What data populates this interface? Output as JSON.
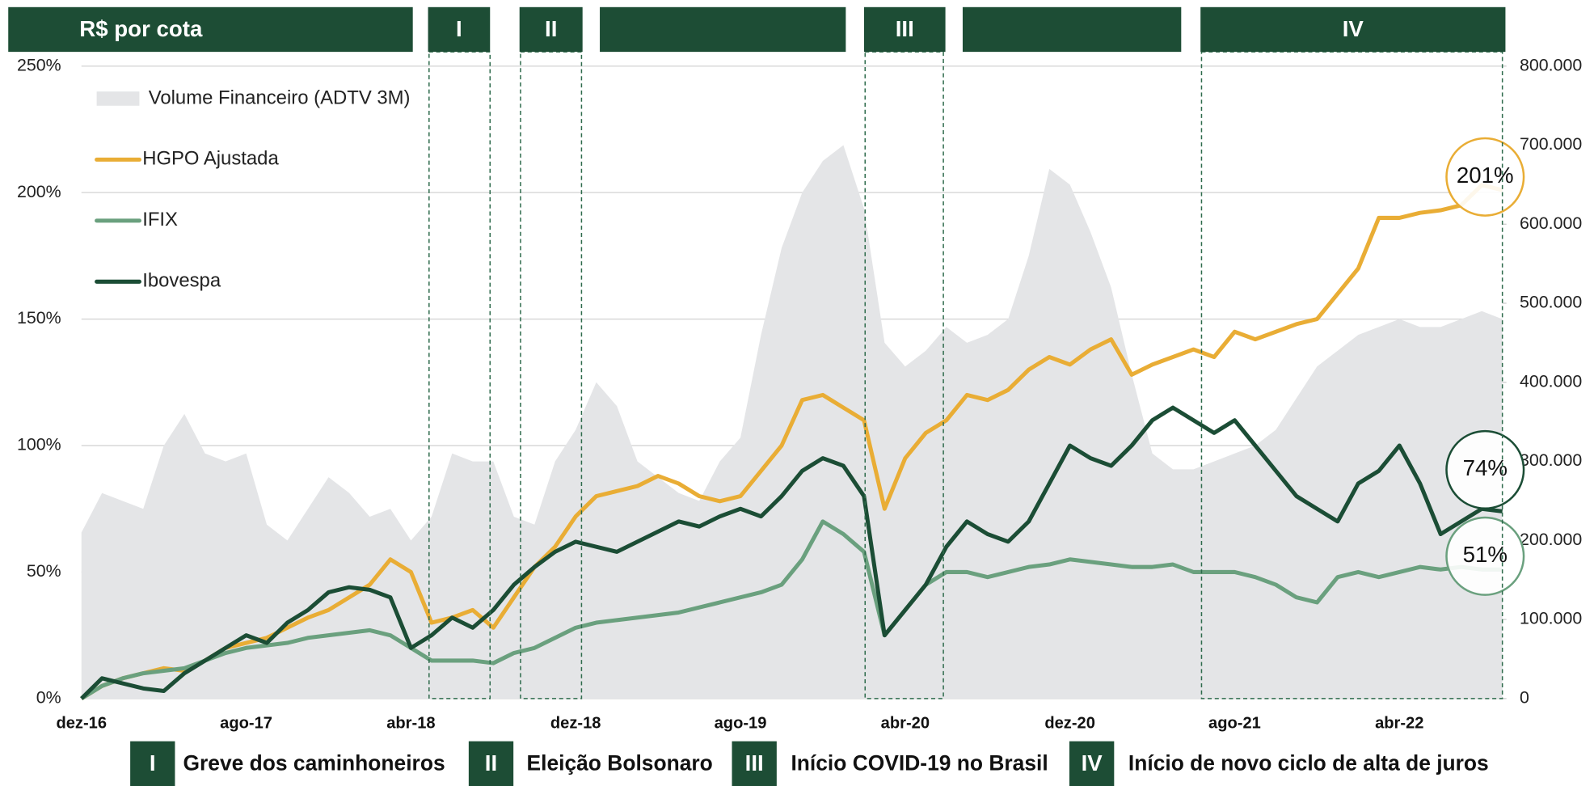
{
  "chart_data": {
    "type": "line",
    "y_axis_label": "R$ por cota",
    "categories": [
      "dez-16",
      null,
      null,
      null,
      null,
      null,
      null,
      null,
      "ago-17",
      null,
      null,
      null,
      null,
      null,
      null,
      null,
      "abr-18",
      null,
      null,
      null,
      null,
      null,
      null,
      null,
      "dez-18",
      null,
      null,
      null,
      null,
      null,
      null,
      null,
      "ago-19",
      null,
      null,
      null,
      null,
      null,
      null,
      null,
      "abr-20",
      null,
      null,
      null,
      null,
      null,
      null,
      null,
      "dez-20",
      null,
      null,
      null,
      null,
      null,
      null,
      null,
      "ago-21",
      null,
      null,
      null,
      null,
      null,
      null,
      null,
      "abr-22",
      null,
      null,
      null,
      null,
      null
    ],
    "series": [
      {
        "name": "Volume Financeiro (ADTV 3M)",
        "kind": "area",
        "axis": "y2",
        "color": "#e4e5e7",
        "values": [
          210000,
          260000,
          250000,
          240000,
          320000,
          360000,
          310000,
          300000,
          310000,
          220000,
          200000,
          240000,
          280000,
          260000,
          230000,
          240000,
          200000,
          230000,
          310000,
          300000,
          300000,
          230000,
          220000,
          300000,
          340000,
          400000,
          370000,
          300000,
          280000,
          260000,
          250000,
          300000,
          330000,
          460000,
          570000,
          640000,
          680000,
          700000,
          620000,
          450000,
          420000,
          440000,
          470000,
          450000,
          460000,
          480000,
          560000,
          670000,
          650000,
          590000,
          520000,
          410000,
          310000,
          290000,
          290000,
          300000,
          310000,
          320000,
          340000,
          380000,
          420000,
          440000,
          460000,
          470000,
          480000,
          470000,
          470000,
          480000,
          490000,
          480000
        ]
      },
      {
        "name": "HGPO Ajustada",
        "color": "#e9ad35",
        "end_label": "201%",
        "values": [
          0,
          5,
          8,
          10,
          12,
          11,
          15,
          20,
          22,
          24,
          28,
          32,
          35,
          40,
          45,
          55,
          50,
          30,
          32,
          35,
          28,
          40,
          52,
          60,
          72,
          80,
          82,
          84,
          88,
          85,
          80,
          78,
          80,
          90,
          100,
          118,
          120,
          115,
          110,
          75,
          95,
          105,
          110,
          120,
          118,
          122,
          130,
          135,
          132,
          138,
          142,
          128,
          132,
          135,
          138,
          135,
          145,
          142,
          145,
          148,
          150,
          160,
          170,
          190,
          190,
          192,
          193,
          195,
          203,
          201
        ]
      },
      {
        "name": "IFIX",
        "color": "#6aa07e",
        "end_label": "51%",
        "values": [
          0,
          5,
          8,
          10,
          11,
          12,
          15,
          18,
          20,
          21,
          22,
          24,
          25,
          26,
          27,
          25,
          20,
          15,
          15,
          15,
          14,
          18,
          20,
          24,
          28,
          30,
          31,
          32,
          33,
          34,
          36,
          38,
          40,
          42,
          45,
          55,
          70,
          65,
          58,
          25,
          35,
          45,
          50,
          50,
          48,
          50,
          52,
          53,
          55,
          54,
          53,
          52,
          52,
          53,
          50,
          50,
          50,
          48,
          45,
          40,
          38,
          48,
          50,
          48,
          50,
          52,
          51,
          52,
          51,
          51
        ]
      },
      {
        "name": "Ibovespa",
        "color": "#1b4d35",
        "end_label": "74%",
        "values": [
          0,
          8,
          6,
          4,
          3,
          10,
          15,
          20,
          25,
          22,
          30,
          35,
          42,
          44,
          43,
          40,
          20,
          25,
          32,
          28,
          35,
          45,
          52,
          58,
          62,
          60,
          58,
          62,
          66,
          70,
          68,
          72,
          75,
          72,
          80,
          90,
          95,
          92,
          80,
          25,
          35,
          45,
          60,
          70,
          65,
          62,
          70,
          85,
          100,
          95,
          92,
          100,
          110,
          115,
          110,
          105,
          110,
          100,
          90,
          80,
          75,
          70,
          85,
          90,
          100,
          85,
          65,
          70,
          75,
          74
        ]
      }
    ],
    "ylim": [
      0,
      250
    ],
    "yticks": [
      {
        "value": 0,
        "label": "0%"
      },
      {
        "value": 50,
        "label": "50%"
      },
      {
        "value": 100,
        "label": "100%"
      },
      {
        "value": 150,
        "label": "150%"
      },
      {
        "value": 200,
        "label": "200%"
      },
      {
        "value": 250,
        "label": "250%"
      }
    ],
    "y2lim": [
      0,
      800000
    ],
    "y2ticks": [
      0,
      {
        "value": 100000,
        "label": "100.000"
      },
      {
        "value": 200000,
        "label": "200.000"
      },
      {
        "value": 300000,
        "label": "300.000"
      },
      {
        "value": 400000,
        "label": "400.000"
      },
      {
        "value": 500000,
        "label": "500.000"
      },
      {
        "value": 600000,
        "label": "600.000"
      },
      {
        "value": 700000,
        "label": "700.000"
      },
      {
        "value": 800000,
        "label": "800.000"
      }
    ],
    "grid": true,
    "periods": [
      {
        "label": "I",
        "description": "Greve dos caminhoneiros"
      },
      {
        "label": "II",
        "description": "Eleição Bolsonaro"
      },
      {
        "label": "III",
        "description": "Início COVID-19 no Brasil"
      },
      {
        "label": "IV",
        "description": "Início de novo ciclo de alta de juros"
      }
    ]
  }
}
